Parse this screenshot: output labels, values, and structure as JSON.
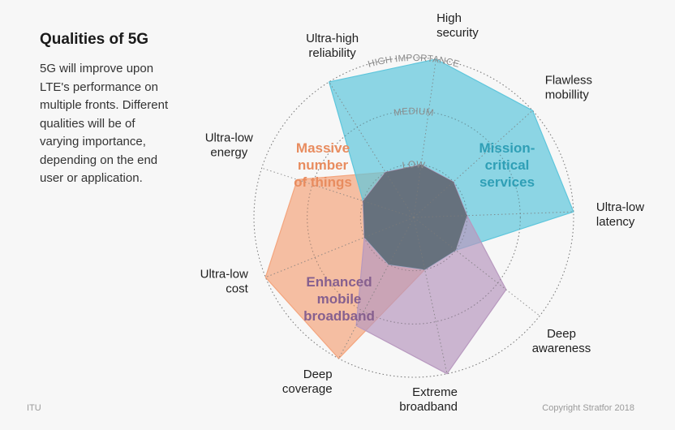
{
  "header": {
    "title": "Qualities of 5G",
    "description": "5G will improve upon LTE's performance on multiple fronts. Different qualities will be of varying importance, depending on the end user or application."
  },
  "footer": {
    "source": "ITU",
    "credit": "Copyright Stratfor 2018"
  },
  "chart_data": {
    "type": "radar",
    "title": "Qualities of 5G",
    "axes": [
      "Ultra-low energy",
      "Ultra-high reliability",
      "High security",
      "Flawless mobillity",
      "Ultra-low latency",
      "Deep awareness",
      "Extreme broadband",
      "Deep coverage",
      "Ultra-low cost"
    ],
    "rings": [
      "LOW",
      "MEDIUM",
      "HIGH IMPORTANCE"
    ],
    "scale": [
      0,
      3
    ],
    "grid": true,
    "series": [
      {
        "name": "Massive number of things",
        "color": "#f4a57e",
        "values": [
          2.3,
          1.0,
          1.0,
          1.0,
          1.0,
          1.0,
          1.0,
          3.0,
          3.0
        ]
      },
      {
        "name": "Mission-critical services",
        "color": "#5ec6dc",
        "values": [
          1.0,
          3.0,
          3.0,
          3.0,
          3.0,
          1.0,
          1.0,
          1.0,
          1.0
        ]
      },
      {
        "name": "Enhanced mobile broadband",
        "color": "#b899bf",
        "values": [
          1.0,
          1.0,
          1.0,
          1.0,
          1.0,
          2.2,
          3.0,
          2.3,
          1.0
        ]
      }
    ]
  }
}
